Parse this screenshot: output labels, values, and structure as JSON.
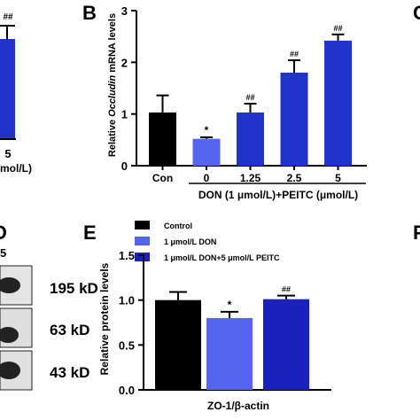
{
  "panels": {
    "B": "B",
    "C": "C",
    "D": "D",
    "E": "E",
    "F": "F"
  },
  "left_fragment": {
    "sig_mark": "##",
    "tick": "5",
    "axis_fragment": "mol/L)"
  },
  "blot": {
    "label_top": "5",
    "bands": [
      "195 kD",
      "63 kD",
      "43 kD"
    ]
  },
  "colors": {
    "black": "#000000",
    "light_blue": "#5566ee",
    "medium_blue": "#2233cc",
    "dark_blue": "#1a22bb"
  },
  "chart_data": [
    {
      "panel": "B",
      "type": "bar",
      "title": "",
      "ylabel": "Relative Occludin mRNA levels",
      "ylabel_parts": [
        "Relative ",
        "Occludin",
        " mRNA levels"
      ],
      "xlabel": "DON (1 μmol/L)+PEITC (μmol/L)",
      "ylim": [
        0,
        3
      ],
      "yticks": [
        "0",
        "1",
        "2",
        "3"
      ],
      "categories": [
        "Con",
        "0",
        "1.25",
        "2.5",
        "5"
      ],
      "values": [
        1.03,
        0.52,
        1.03,
        1.8,
        2.42
      ],
      "errors": [
        0.33,
        0.03,
        0.17,
        0.24,
        0.12
      ],
      "colors": [
        "#000000",
        "#5566ee",
        "#2233cc",
        "#2233cc",
        "#2233cc"
      ],
      "annotations": [
        "",
        "*",
        "##",
        "##",
        "##"
      ]
    },
    {
      "panel": "E",
      "type": "bar",
      "title": "",
      "ylabel": "Relative protein levels",
      "xlabel": "ZO-1/β-actin",
      "ylim": [
        0,
        1.5
      ],
      "yticks": [
        "0.0",
        "0.5",
        "1.0",
        "1.5"
      ],
      "legend_position": "top-left",
      "series": [
        {
          "name": "Control",
          "values": [
            1.0
          ],
          "errors": [
            0.09
          ],
          "color": "#000000",
          "annotation": ""
        },
        {
          "name": "1  μmol/L DON",
          "values": [
            0.8
          ],
          "errors": [
            0.07
          ],
          "color": "#5566ee",
          "annotation": "*"
        },
        {
          "name": "1  μmol/L DON+5 μmol/L PEITC",
          "values": [
            1.01
          ],
          "errors": [
            0.04
          ],
          "color": "#1a22bb",
          "annotation": "##"
        }
      ]
    }
  ]
}
